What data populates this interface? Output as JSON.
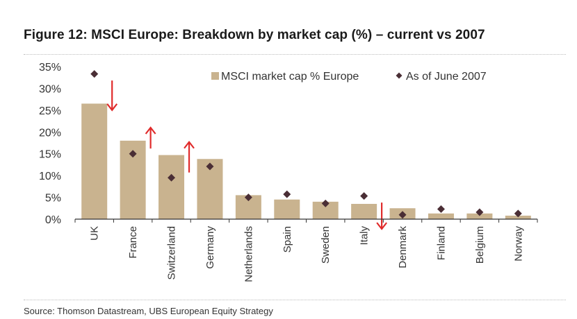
{
  "title": "Figure 12: MSCI Europe: Breakdown by market cap (%) – current vs 2007",
  "source": "Source:   Thomson Datastream, UBS European Equity Strategy",
  "colors": {
    "bar": "#c9b38f",
    "marker": "#4a2e35",
    "arrow": "#e02b2b",
    "axis": "#333333"
  },
  "chart_data": {
    "type": "bar",
    "categories": [
      "UK",
      "France",
      "Switzerland",
      "Germany",
      "Netherlands",
      "Spain",
      "Sweden",
      "Italy",
      "Denmark",
      "Finland",
      "Belgium",
      "Norway"
    ],
    "series": [
      {
        "name": "MSCI market cap % Europe",
        "kind": "bar",
        "values": [
          26.5,
          18.0,
          14.7,
          13.8,
          5.5,
          4.5,
          4.0,
          3.5,
          2.5,
          1.3,
          1.3,
          0.8
        ]
      },
      {
        "name": "As of June 2007",
        "kind": "marker",
        "values": [
          33.3,
          15.0,
          9.5,
          12.1,
          5.0,
          5.7,
          3.6,
          5.3,
          1.0,
          2.3,
          1.6,
          1.3
        ]
      }
    ],
    "arrows": [
      {
        "category": "UK",
        "direction": "down"
      },
      {
        "category": "France",
        "direction": "up"
      },
      {
        "category": "Switzerland",
        "direction": "up"
      },
      {
        "category": "Italy",
        "direction": "down"
      }
    ],
    "ylim": [
      0,
      35
    ],
    "yticks": [
      0,
      5,
      10,
      15,
      20,
      25,
      30,
      35
    ],
    "ytick_labels": [
      "0%",
      "5%",
      "10%",
      "15%",
      "20%",
      "25%",
      "30%",
      "35%"
    ],
    "xlabel": "",
    "ylabel": "",
    "grid": false,
    "legend_position": "top-right"
  }
}
